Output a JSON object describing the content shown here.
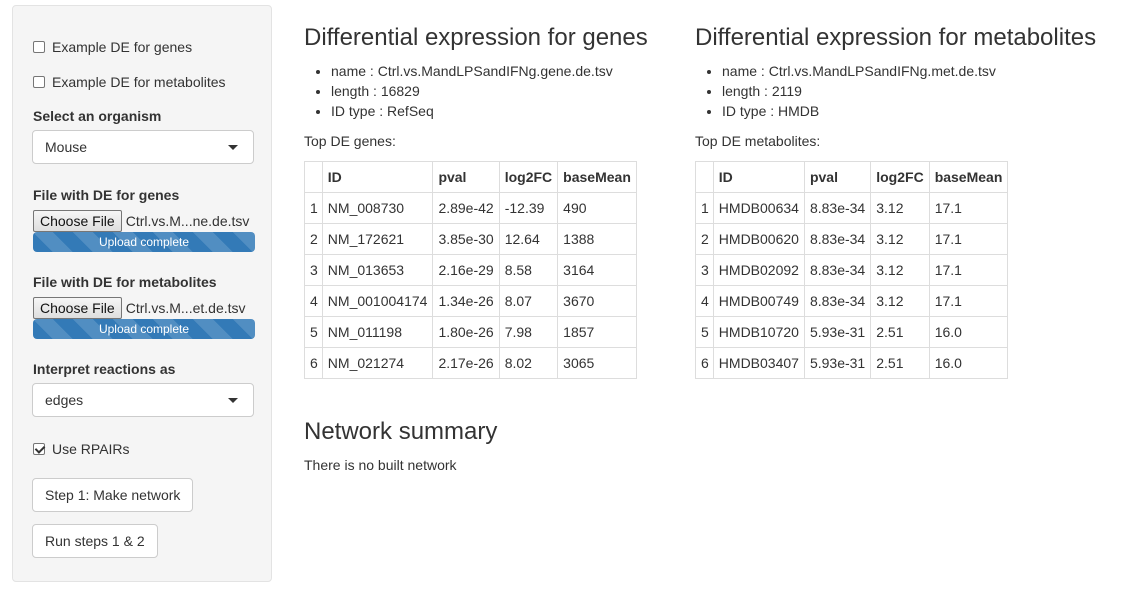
{
  "sidebar": {
    "example_genes_label": "Example DE for genes",
    "example_genes_checked": false,
    "example_metabolites_label": "Example DE for metabolites",
    "example_metabolites_checked": false,
    "organism_label": "Select an organism",
    "organism_value": "Mouse",
    "genes_file_label": "File with DE for genes",
    "genes_file_button": "Choose File",
    "genes_file_name": "Ctrl.vs.M...ne.de.tsv",
    "genes_upload_status": "Upload complete",
    "genes_upload_progress": 1.0,
    "metabolites_file_label": "File with DE for metabolites",
    "metabolites_file_button": "Choose File",
    "metabolites_file_name": "Ctrl.vs.M...et.de.tsv",
    "metabolites_upload_status": "Upload complete",
    "metabolites_upload_progress": 1.0,
    "reactions_label": "Interpret reactions as",
    "reactions_value": "edges",
    "rpairs_label": "Use RPAIRs",
    "rpairs_checked": true,
    "step1_button": "Step 1: Make network",
    "run_button": "Run steps 1 & 2"
  },
  "genes": {
    "title": "Differential expression for genes",
    "info": [
      {
        "key": "name",
        "value": "Ctrl.vs.MandLPSandIFNg.gene.de.tsv"
      },
      {
        "key": "length",
        "value": "16829"
      },
      {
        "key": "ID type",
        "value": "RefSeq"
      }
    ],
    "top_label": "Top DE genes:",
    "columns": [
      "",
      "ID",
      "pval",
      "log2FC",
      "baseMean"
    ],
    "rows": [
      [
        "1",
        "NM_008730",
        "2.89e-42",
        "-12.39",
        "490"
      ],
      [
        "2",
        "NM_172621",
        "3.85e-30",
        "12.64",
        "1388"
      ],
      [
        "3",
        "NM_013653",
        "2.16e-29",
        "8.58",
        "3164"
      ],
      [
        "4",
        "NM_001004174",
        "1.34e-26",
        "8.07",
        "3670"
      ],
      [
        "5",
        "NM_011198",
        "1.80e-26",
        "7.98",
        "1857"
      ],
      [
        "6",
        "NM_021274",
        "2.17e-26",
        "8.02",
        "3065"
      ]
    ]
  },
  "metabolites": {
    "title": "Differential expression for metabolites",
    "info": [
      {
        "key": "name",
        "value": "Ctrl.vs.MandLPSandIFNg.met.de.tsv"
      },
      {
        "key": "length",
        "value": "2119"
      },
      {
        "key": "ID type",
        "value": "HMDB"
      }
    ],
    "top_label": "Top DE metabolites:",
    "columns": [
      "",
      "ID",
      "pval",
      "log2FC",
      "baseMean"
    ],
    "rows": [
      [
        "1",
        "HMDB00634",
        "8.83e-34",
        "3.12",
        "17.1"
      ],
      [
        "2",
        "HMDB00620",
        "8.83e-34",
        "3.12",
        "17.1"
      ],
      [
        "3",
        "HMDB02092",
        "8.83e-34",
        "3.12",
        "17.1"
      ],
      [
        "4",
        "HMDB00749",
        "8.83e-34",
        "3.12",
        "17.1"
      ],
      [
        "5",
        "HMDB10720",
        "5.93e-31",
        "2.51",
        "16.0"
      ],
      [
        "6",
        "HMDB03407",
        "5.93e-31",
        "2.51",
        "16.0"
      ]
    ]
  },
  "network": {
    "title": "Network summary",
    "status": "There is no built network"
  }
}
